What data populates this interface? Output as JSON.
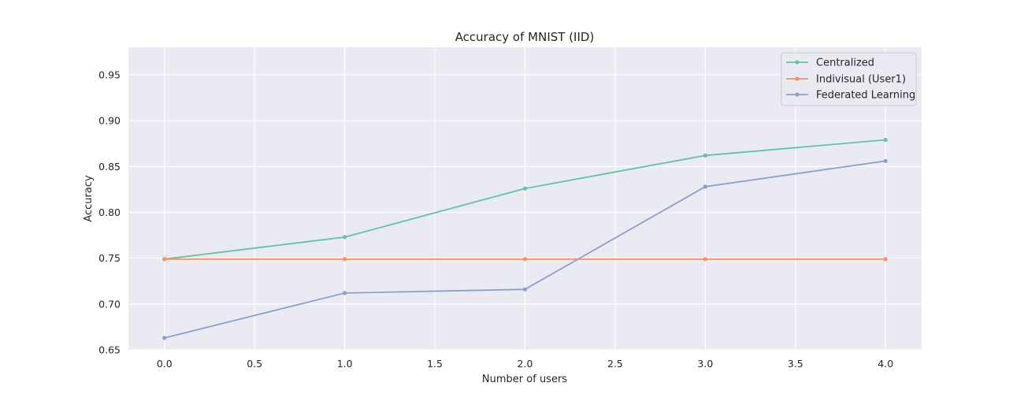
{
  "chart_data": {
    "type": "line",
    "title": "Accuracy of MNIST (IID)",
    "xlabel": "Number of users",
    "ylabel": "Accuracy",
    "x": [
      0,
      1,
      2,
      3,
      4
    ],
    "xlim": [
      -0.2,
      4.2
    ],
    "ylim": [
      0.65,
      0.98
    ],
    "xticks": [
      0.0,
      0.5,
      1.0,
      1.5,
      2.0,
      2.5,
      3.0,
      3.5,
      4.0
    ],
    "xtick_labels": [
      "0.0",
      "0.5",
      "1.0",
      "1.5",
      "2.0",
      "2.5",
      "3.0",
      "3.5",
      "4.0"
    ],
    "yticks": [
      0.65,
      0.7,
      0.75,
      0.8,
      0.85,
      0.9,
      0.95
    ],
    "ytick_labels": [
      "0.65",
      "0.70",
      "0.75",
      "0.80",
      "0.85",
      "0.90",
      "0.95"
    ],
    "grid": true,
    "legend_position": "top-right",
    "series": [
      {
        "name": "Centralized",
        "color": "#66c2a5",
        "values": [
          0.749,
          0.773,
          0.826,
          0.862,
          0.879
        ]
      },
      {
        "name": "Indivisual (User1)",
        "color": "#fc8d62",
        "values": [
          0.749,
          0.749,
          0.749,
          0.749,
          0.749
        ]
      },
      {
        "name": "Federated Learning",
        "color": "#8da0cb",
        "values": [
          0.663,
          0.712,
          0.716,
          0.828,
          0.856
        ]
      }
    ]
  }
}
